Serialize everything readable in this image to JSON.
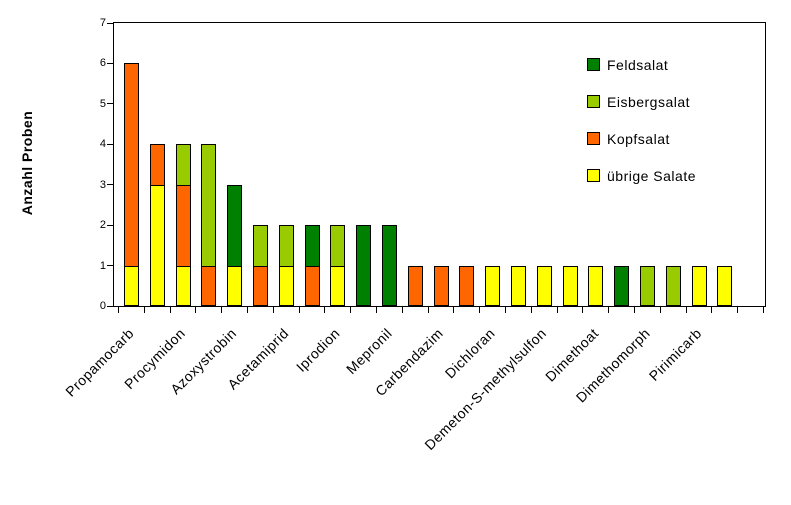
{
  "chart_data": {
    "type": "bar",
    "stacked": true,
    "title": "",
    "xlabel": "",
    "ylabel": "Anzahl Proben",
    "ylim": [
      0,
      7
    ],
    "yticks": [
      0,
      1,
      2,
      3,
      4,
      5,
      6,
      7
    ],
    "grid": false,
    "legend_position": "inside-top-right",
    "legend_top_to_bottom": [
      {
        "label": "Feldsalat",
        "color": "#008000"
      },
      {
        "label": "Eisbergsalat",
        "color": "#99CC00"
      },
      {
        "label": "Kopfsalat",
        "color": "#FF6600"
      },
      {
        "label": "übrige Salate",
        "color": "#FFFF00"
      }
    ],
    "series_bottom_to_top": [
      {
        "name": "übrige Salate",
        "color": "#FFFF00"
      },
      {
        "name": "Kopfsalat",
        "color": "#FF6600"
      },
      {
        "name": "Eisbergsalat",
        "color": "#99CC00"
      },
      {
        "name": "Feldsalat",
        "color": "#008000"
      }
    ],
    "bars": [
      {
        "label": "Propamocarb",
        "stack": [
          1,
          5,
          0,
          0
        ]
      },
      {
        "label": "",
        "stack": [
          3,
          1,
          0,
          0
        ]
      },
      {
        "label": "Procymidon",
        "stack": [
          1,
          2,
          1,
          0
        ]
      },
      {
        "label": "",
        "stack": [
          0,
          1,
          3,
          0
        ]
      },
      {
        "label": "Azoxystrobin",
        "stack": [
          1,
          0,
          0,
          2
        ]
      },
      {
        "label": "",
        "stack": [
          0,
          1,
          1,
          0
        ]
      },
      {
        "label": "Acetamiprid",
        "stack": [
          1,
          0,
          1,
          0
        ]
      },
      {
        "label": "",
        "stack": [
          0,
          1,
          0,
          1
        ]
      },
      {
        "label": "Iprodion",
        "stack": [
          1,
          0,
          1,
          0
        ]
      },
      {
        "label": "",
        "stack": [
          0,
          0,
          0,
          2
        ]
      },
      {
        "label": "Mepronil",
        "stack": [
          0,
          0,
          0,
          2
        ]
      },
      {
        "label": "",
        "stack": [
          0,
          1,
          0,
          0
        ]
      },
      {
        "label": "Carbendazim",
        "stack": [
          0,
          1,
          0,
          0
        ]
      },
      {
        "label": "",
        "stack": [
          0,
          1,
          0,
          0
        ]
      },
      {
        "label": "Dichloran",
        "stack": [
          1,
          0,
          0,
          0
        ]
      },
      {
        "label": "",
        "stack": [
          1,
          0,
          0,
          0
        ]
      },
      {
        "label": "Demeton-S-methylsulfon",
        "stack": [
          1,
          0,
          0,
          0
        ]
      },
      {
        "label": "",
        "stack": [
          1,
          0,
          0,
          0
        ]
      },
      {
        "label": "Dimethoat",
        "stack": [
          1,
          0,
          0,
          0
        ]
      },
      {
        "label": "",
        "stack": [
          0,
          0,
          0,
          1
        ]
      },
      {
        "label": "Dimethomorph",
        "stack": [
          0,
          0,
          1,
          0
        ]
      },
      {
        "label": "",
        "stack": [
          0,
          0,
          1,
          0
        ]
      },
      {
        "label": "Pirimicarb",
        "stack": [
          1,
          0,
          0,
          0
        ]
      },
      {
        "label": "",
        "stack": [
          1,
          0,
          0,
          0
        ]
      }
    ]
  }
}
